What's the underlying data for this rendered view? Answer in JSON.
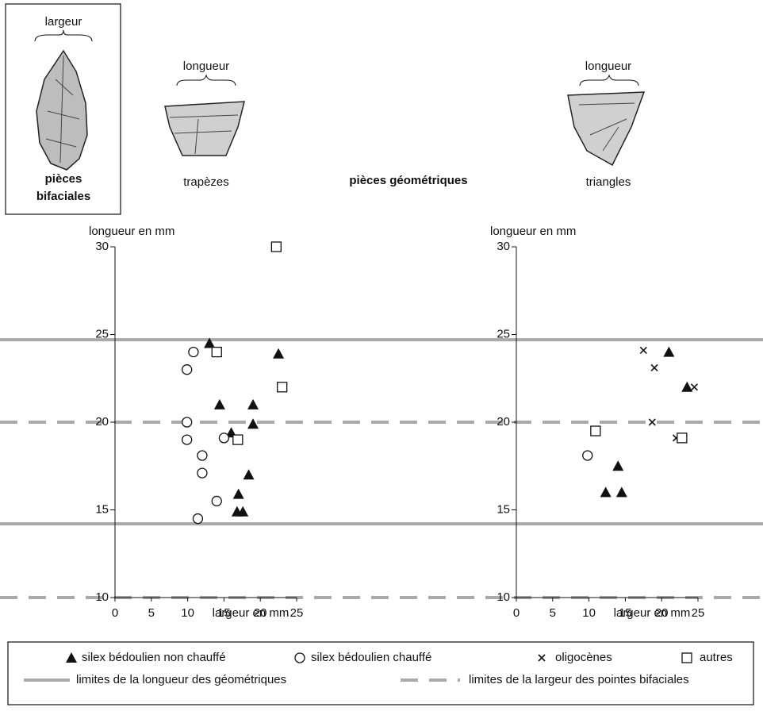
{
  "header": {
    "bifacial": {
      "dimension": "largeur",
      "label_lines": [
        "pièces",
        "bifaciales"
      ]
    },
    "trapezes": {
      "dimension": "longueur",
      "label": "trapèzes"
    },
    "center_label": "pièces géométriques",
    "triangles": {
      "dimension": "longueur",
      "label": "triangles"
    }
  },
  "reference_lines": [
    {
      "label": "limites de la longueur des géométriques",
      "style": "solid",
      "color": "#aaaaaa",
      "values": [
        24.7,
        14.2
      ]
    },
    {
      "label": "limites de la largeur des pointes bifaciales",
      "style": "dashed",
      "color": "#aaaaaa",
      "values": [
        20,
        10
      ]
    }
  ],
  "chart_data": [
    {
      "type": "scatter",
      "x_label": "largeur en mm",
      "y_label": "longueur en mm",
      "xlim": [
        0,
        25
      ],
      "ylim": [
        10,
        30
      ],
      "xticks": [
        0,
        5,
        10,
        15,
        20,
        25
      ],
      "yticks": [
        10,
        15,
        20,
        25,
        30
      ],
      "series": [
        {
          "name": "silex bédoulien non chauffé",
          "marker": "triangle",
          "color": "#111111",
          "x": [
            13.0,
            22.5,
            14.4,
            19.0,
            19.0,
            16.0,
            18.4,
            17.0,
            16.8,
            17.6
          ],
          "values": [
            24.5,
            23.9,
            21.0,
            21.0,
            19.9,
            19.4,
            17.0,
            15.9,
            14.9,
            14.9
          ]
        },
        {
          "name": "silex bédoulien chauffé",
          "marker": "circle",
          "color": "#111111",
          "x": [
            10.8,
            9.9,
            9.9,
            9.9,
            15.0,
            12.0,
            12.0,
            14.0,
            11.4
          ],
          "values": [
            24.0,
            23.0,
            20.0,
            19.0,
            19.1,
            18.1,
            17.1,
            15.5,
            14.5
          ]
        },
        {
          "name": "oligocènes",
          "marker": "cross",
          "color": "#111111",
          "x": [],
          "values": []
        },
        {
          "name": "autres",
          "marker": "square",
          "color": "#111111",
          "x": [
            22.2,
            14.0,
            23.0,
            16.9
          ],
          "values": [
            30.0,
            24.0,
            22.0,
            19.0
          ]
        }
      ]
    },
    {
      "type": "scatter",
      "x_label": "largeur en mm",
      "y_label": "longueur en mm",
      "xlim": [
        0,
        25
      ],
      "ylim": [
        10,
        30
      ],
      "xticks": [
        0,
        5,
        10,
        15,
        20,
        25
      ],
      "yticks": [
        10,
        15,
        20,
        25,
        30
      ],
      "series": [
        {
          "name": "silex bédoulien non chauffé",
          "marker": "triangle",
          "color": "#111111",
          "x": [
            21.0,
            23.5,
            14.0,
            12.3,
            14.5
          ],
          "values": [
            24.0,
            22.0,
            17.5,
            16.0,
            16.0
          ]
        },
        {
          "name": "silex bédoulien chauffé",
          "marker": "circle",
          "color": "#111111",
          "x": [
            9.8
          ],
          "values": [
            18.1
          ]
        },
        {
          "name": "oligocènes",
          "marker": "cross",
          "color": "#111111",
          "x": [
            17.5,
            19.0,
            18.7,
            24.5,
            22.0
          ],
          "values": [
            24.1,
            23.1,
            20.0,
            22.0,
            19.1
          ]
        },
        {
          "name": "autres",
          "marker": "square",
          "color": "#111111",
          "x": [
            10.9,
            22.8
          ],
          "values": [
            19.5,
            19.1
          ]
        }
      ]
    }
  ]
}
